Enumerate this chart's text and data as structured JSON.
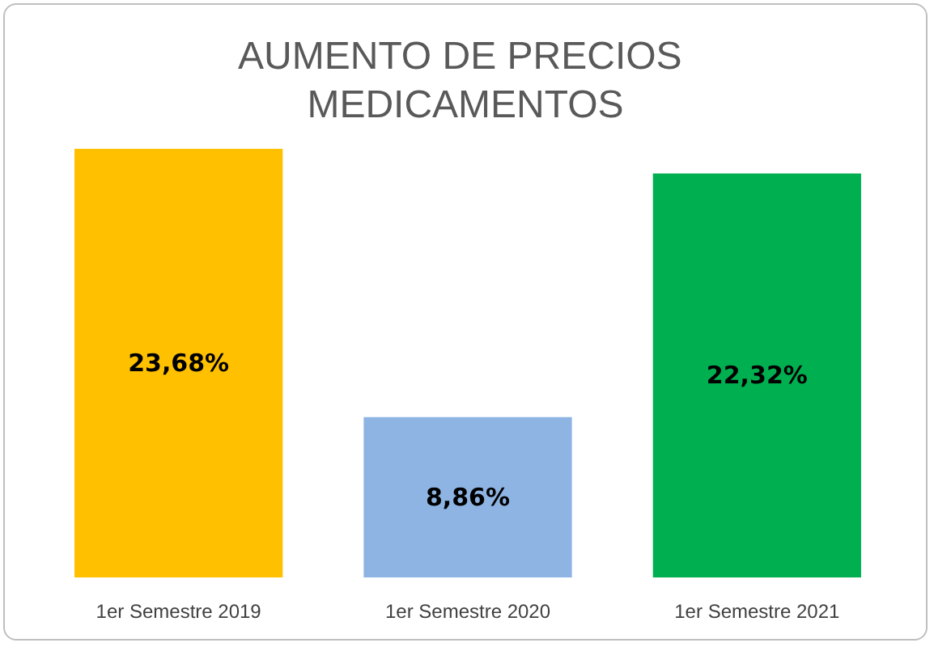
{
  "chart_data": {
    "type": "bar",
    "title": "AUMENTO DE PRECIOS MEDICAMENTOS",
    "categories": [
      "1er Semestre 2019",
      "1er Semestre 2020",
      "1er Semestre 2021"
    ],
    "values": [
      23.68,
      8.86,
      22.32
    ],
    "colors": [
      "#ffc000",
      "#8eb4e3",
      "#00b050"
    ],
    "value_labels": [
      "23,68%",
      "8,86%",
      "22,32%"
    ]
  }
}
